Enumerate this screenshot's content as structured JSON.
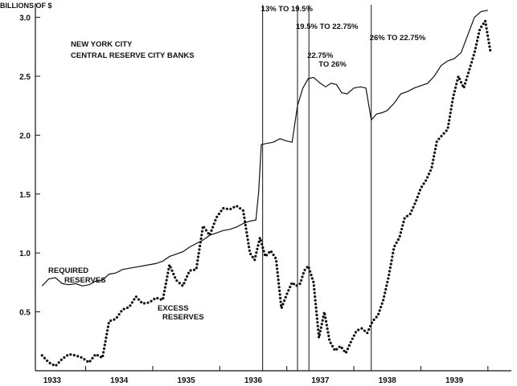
{
  "chart_data": {
    "type": "line",
    "title": "NEW YORK CITY",
    "subtitle": "CENTRAL RESERVE CITY BANKS",
    "ylabel": "BILLIONS OF $",
    "xlabel": "",
    "xlim": [
      1932.75,
      1939.85
    ],
    "ylim": [
      0,
      3.12
    ],
    "grid": false,
    "x_ticks": [
      {
        "x": 1933.0,
        "label": "1933"
      },
      {
        "x": 1934.0,
        "label": "1934"
      },
      {
        "x": 1935.0,
        "label": "1935"
      },
      {
        "x": 1936.0,
        "label": "1936"
      },
      {
        "x": 1937.0,
        "label": "1937"
      },
      {
        "x": 1938.0,
        "label": "1938"
      },
      {
        "x": 1939.0,
        "label": "1939"
      }
    ],
    "y_ticks": [
      {
        "y": 0.5,
        "label": "0.5"
      },
      {
        "y": 1.0,
        "label": "1.0"
      },
      {
        "y": 1.5,
        "label": "1.5"
      },
      {
        "y": 2.0,
        "label": "2.0"
      },
      {
        "y": 2.5,
        "label": "2.5"
      },
      {
        "y": 3.0,
        "label": "3.0"
      }
    ],
    "series": [
      {
        "name": "REQUIRED RESERVES",
        "style": "solid",
        "label_lines": [
          "REQUIRED",
          "RESERVES"
        ],
        "x": [
          1932.85,
          1932.95,
          1933.05,
          1933.15,
          1933.25,
          1933.35,
          1933.45,
          1933.55,
          1933.65,
          1933.75,
          1933.85,
          1933.95,
          1934.05,
          1934.15,
          1934.25,
          1934.35,
          1934.45,
          1934.55,
          1934.65,
          1934.75,
          1934.85,
          1934.95,
          1935.05,
          1935.15,
          1935.25,
          1935.35,
          1935.45,
          1935.55,
          1935.65,
          1935.75,
          1935.85,
          1935.95,
          1936.04,
          1936.08,
          1936.12,
          1936.2,
          1936.3,
          1936.4,
          1936.5,
          1936.58,
          1936.66,
          1936.74,
          1936.82,
          1936.9,
          1937.0,
          1937.08,
          1937.16,
          1937.24,
          1937.32,
          1937.4,
          1937.5,
          1937.6,
          1937.68,
          1937.76,
          1937.84,
          1937.92,
          1938.0,
          1938.1,
          1938.2,
          1938.3,
          1938.4,
          1938.5,
          1938.6,
          1938.7,
          1938.8,
          1938.9,
          1939.0,
          1939.1,
          1939.2,
          1939.3,
          1939.4,
          1939.5
        ],
        "y": [
          0.72,
          0.78,
          0.79,
          0.74,
          0.73,
          0.74,
          0.72,
          0.73,
          0.76,
          0.77,
          0.82,
          0.83,
          0.86,
          0.87,
          0.88,
          0.89,
          0.9,
          0.91,
          0.93,
          0.97,
          0.99,
          1.01,
          1.05,
          1.08,
          1.11,
          1.15,
          1.17,
          1.19,
          1.2,
          1.22,
          1.25,
          1.27,
          1.28,
          1.52,
          1.92,
          1.93,
          1.94,
          1.97,
          1.95,
          1.94,
          2.25,
          2.4,
          2.48,
          2.49,
          2.44,
          2.41,
          2.44,
          2.43,
          2.36,
          2.35,
          2.4,
          2.41,
          2.4,
          2.13,
          2.18,
          2.19,
          2.21,
          2.27,
          2.35,
          2.37,
          2.4,
          2.42,
          2.44,
          2.5,
          2.59,
          2.63,
          2.65,
          2.7,
          2.85,
          3.0,
          3.05,
          3.06
        ]
      },
      {
        "name": "EXCESS RESERVES",
        "style": "dotted",
        "label_lines": [
          "EXCESS",
          "RESERVES"
        ],
        "x": [
          1932.85,
          1932.95,
          1933.05,
          1933.15,
          1933.25,
          1933.35,
          1933.45,
          1933.55,
          1933.65,
          1933.75,
          1933.85,
          1933.95,
          1934.05,
          1934.15,
          1934.25,
          1934.35,
          1934.45,
          1934.55,
          1934.65,
          1934.75,
          1934.85,
          1934.95,
          1935.05,
          1935.15,
          1935.25,
          1935.35,
          1935.45,
          1935.55,
          1935.65,
          1935.75,
          1935.85,
          1935.95,
          1936.02,
          1936.1,
          1936.18,
          1936.26,
          1936.34,
          1936.42,
          1936.5,
          1936.58,
          1936.64,
          1936.7,
          1936.76,
          1936.82,
          1936.9,
          1936.98,
          1937.06,
          1937.14,
          1937.22,
          1937.3,
          1937.38,
          1937.46,
          1937.54,
          1937.62,
          1937.7,
          1937.78,
          1937.86,
          1937.94,
          1938.02,
          1938.1,
          1938.18,
          1938.26,
          1938.34,
          1938.42,
          1938.5,
          1938.58,
          1938.66,
          1938.74,
          1938.82,
          1938.9,
          1938.98,
          1939.06,
          1939.14,
          1939.22,
          1939.3,
          1939.38,
          1939.46,
          1939.54
        ],
        "y": [
          0.13,
          0.07,
          0.04,
          0.1,
          0.14,
          0.13,
          0.11,
          0.07,
          0.14,
          0.11,
          0.42,
          0.44,
          0.52,
          0.54,
          0.63,
          0.57,
          0.58,
          0.62,
          0.6,
          0.9,
          0.77,
          0.72,
          0.85,
          0.86,
          1.23,
          1.15,
          1.3,
          1.38,
          1.37,
          1.4,
          1.36,
          1.0,
          0.94,
          1.13,
          0.97,
          1.02,
          0.95,
          0.53,
          0.65,
          0.75,
          0.72,
          0.74,
          0.85,
          0.89,
          0.75,
          0.28,
          0.5,
          0.25,
          0.17,
          0.21,
          0.15,
          0.25,
          0.34,
          0.36,
          0.32,
          0.42,
          0.47,
          0.6,
          0.8,
          1.05,
          1.13,
          1.3,
          1.33,
          1.43,
          1.55,
          1.62,
          1.72,
          1.95,
          2.0,
          2.05,
          2.32,
          2.5,
          2.4,
          2.55,
          2.7,
          2.9,
          2.97,
          2.7
        ]
      }
    ],
    "annotations": [
      {
        "x": 1936.14,
        "lines": [
          "13% TO 19.5%"
        ]
      },
      {
        "x": 1936.66,
        "lines": [
          "19.5%  TO 22.75%"
        ]
      },
      {
        "x": 1936.83,
        "lines": [
          "22.75%",
          "TO 26%"
        ]
      },
      {
        "x": 1937.76,
        "lines": [
          "26% TO 22.75%"
        ]
      }
    ]
  }
}
